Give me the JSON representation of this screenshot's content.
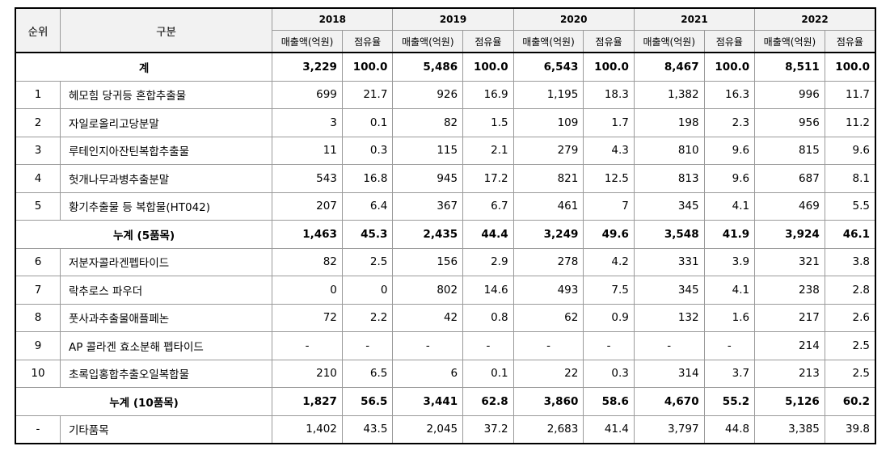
{
  "header": {
    "rank": "순위",
    "category": "구분",
    "years": [
      "2018",
      "2019",
      "2020",
      "2021",
      "2022"
    ],
    "sales_label": "매출액(억원)",
    "share_label": "점유율"
  },
  "rows": [
    {
      "rank": "",
      "name": "계",
      "type": "total",
      "vals": [
        "3,229",
        "100.0",
        "5,486",
        "100.0",
        "6,543",
        "100.0",
        "8,467",
        "100.0",
        "8,511",
        "100.0"
      ]
    },
    {
      "rank": "1",
      "name": "헤모힘 당귀등 혼합추출물",
      "type": "item",
      "vals": [
        "699",
        "21.7",
        "926",
        "16.9",
        "1,195",
        "18.3",
        "1,382",
        "16.3",
        "996",
        "11.7"
      ]
    },
    {
      "rank": "2",
      "name": "자일로올리고당분말",
      "type": "item",
      "vals": [
        "3",
        "0.1",
        "82",
        "1.5",
        "109",
        "1.7",
        "198",
        "2.3",
        "956",
        "11.2"
      ]
    },
    {
      "rank": "3",
      "name": "루테인지아잔틴복합추출물",
      "type": "item",
      "vals": [
        "11",
        "0.3",
        "115",
        "2.1",
        "279",
        "4.3",
        "810",
        "9.6",
        "815",
        "9.6"
      ]
    },
    {
      "rank": "4",
      "name": "헛개나무과병추출분말",
      "type": "item",
      "vals": [
        "543",
        "16.8",
        "945",
        "17.2",
        "821",
        "12.5",
        "813",
        "9.6",
        "687",
        "8.1"
      ]
    },
    {
      "rank": "5",
      "name": "황기추출물 등 복합물(HT042)",
      "type": "item",
      "vals": [
        "207",
        "6.4",
        "367",
        "6.7",
        "461",
        "7",
        "345",
        "4.1",
        "469",
        "5.5"
      ]
    },
    {
      "rank": "",
      "name": "누계 (5품목)",
      "type": "total",
      "vals": [
        "1,463",
        "45.3",
        "2,435",
        "44.4",
        "3,249",
        "49.6",
        "3,548",
        "41.9",
        "3,924",
        "46.1"
      ]
    },
    {
      "rank": "6",
      "name": "저분자콜라겐펩타이드",
      "type": "item",
      "vals": [
        "82",
        "2.5",
        "156",
        "2.9",
        "278",
        "4.2",
        "331",
        "3.9",
        "321",
        "3.8"
      ]
    },
    {
      "rank": "7",
      "name": "락추로스 파우더",
      "type": "item",
      "vals": [
        "0",
        "0",
        "802",
        "14.6",
        "493",
        "7.5",
        "345",
        "4.1",
        "238",
        "2.8"
      ]
    },
    {
      "rank": "8",
      "name": "풋사과추출물애플페논",
      "type": "item",
      "vals": [
        "72",
        "2.2",
        "42",
        "0.8",
        "62",
        "0.9",
        "132",
        "1.6",
        "217",
        "2.6"
      ]
    },
    {
      "rank": "9",
      "name": "AP 콜라겐 효소분해 펩타이드",
      "type": "item",
      "vals": [
        "-",
        "-",
        "-",
        "-",
        "-",
        "-",
        "-",
        "-",
        "214",
        "2.5"
      ]
    },
    {
      "rank": "10",
      "name": "초록입홍합추출오일복합물",
      "type": "item",
      "vals": [
        "210",
        "6.5",
        "6",
        "0.1",
        "22",
        "0.3",
        "314",
        "3.7",
        "213",
        "2.5"
      ]
    },
    {
      "rank": "",
      "name": "누계 (10품목)",
      "type": "total",
      "vals": [
        "1,827",
        "56.5",
        "3,441",
        "62.8",
        "3,860",
        "58.6",
        "4,670",
        "55.2",
        "5,126",
        "60.2"
      ]
    },
    {
      "rank": "-",
      "name": "기타품목",
      "type": "item",
      "vals": [
        "1,402",
        "43.5",
        "2,045",
        "37.2",
        "2,683",
        "41.4",
        "3,797",
        "44.8",
        "3,385",
        "39.8"
      ]
    }
  ]
}
